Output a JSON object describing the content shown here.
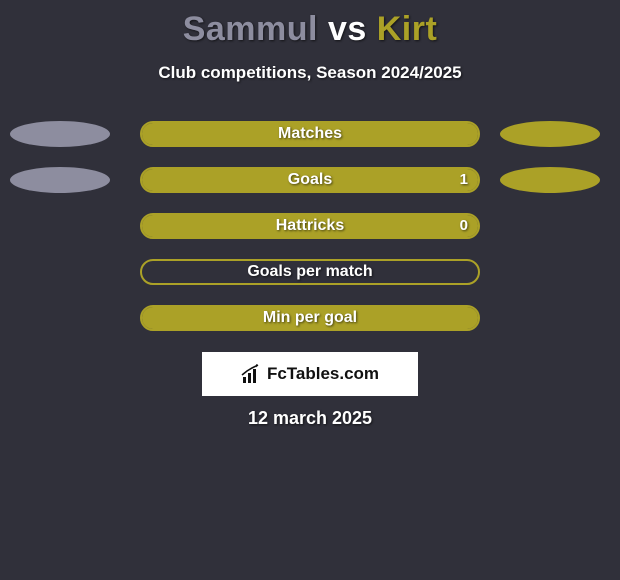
{
  "colors": {
    "background": "#30303a",
    "player1": "#8d8d9f",
    "player2": "#aba127",
    "white": "#ffffff",
    "logo_bg": "#ffffff",
    "logo_text": "#111111"
  },
  "title": {
    "player1": "Sammul",
    "vs": "vs",
    "player2": "Kirt"
  },
  "subtitle": "Club competitions, Season 2024/2025",
  "rows": [
    {
      "label": "Matches",
      "show_pills": true,
      "fill_color_key": "player2",
      "fill_pct": 100,
      "value_right": ""
    },
    {
      "label": "Goals",
      "show_pills": true,
      "fill_color_key": "player2",
      "fill_pct": 100,
      "value_right": "1"
    },
    {
      "label": "Hattricks",
      "show_pills": false,
      "fill_color_key": "player2",
      "fill_pct": 100,
      "value_right": "0"
    },
    {
      "label": "Goals per match",
      "show_pills": false,
      "fill_color_key": "player2",
      "fill_pct": 0,
      "value_right": ""
    },
    {
      "label": "Min per goal",
      "show_pills": false,
      "fill_color_key": "player2",
      "fill_pct": 100,
      "value_right": ""
    }
  ],
  "logo": {
    "text": "FcTables.com",
    "icon": "chart-ascending-icon"
  },
  "date": "12 march 2025"
}
